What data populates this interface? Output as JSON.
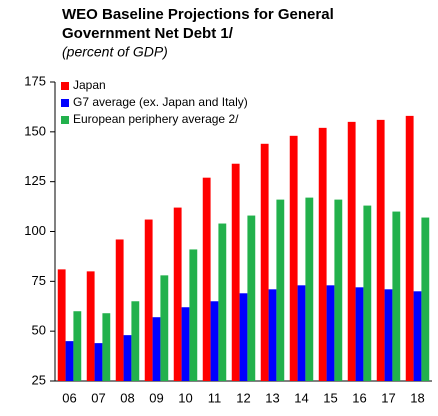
{
  "chart_data": {
    "type": "bar",
    "title_lines": [
      "WEO Baseline Projections for General",
      "Government Net Debt 1/"
    ],
    "subtitle": "(percent of GDP)",
    "categories": [
      "06",
      "07",
      "08",
      "09",
      "10",
      "11",
      "12",
      "13",
      "14",
      "15",
      "16",
      "17",
      "18"
    ],
    "series": [
      {
        "name": "Japan",
        "color": "#ff0000",
        "values": [
          81,
          80,
          96,
          106,
          112,
          127,
          134,
          144,
          148,
          152,
          155,
          156,
          158
        ]
      },
      {
        "name": "G7 average (ex. Japan and Italy)",
        "color": "#0000ff",
        "values": [
          45,
          44,
          48,
          57,
          62,
          65,
          69,
          71,
          73,
          73,
          72,
          71,
          70
        ]
      },
      {
        "name": "European periphery average 2/",
        "color": "#22b14c",
        "values": [
          60,
          59,
          65,
          78,
          91,
          104,
          108,
          116,
          117,
          116,
          113,
          110,
          107
        ]
      }
    ],
    "ylim": [
      25,
      175
    ],
    "yticks": [
      25,
      50,
      75,
      100,
      125,
      150,
      175
    ],
    "grid": false,
    "legend": "top-left"
  }
}
